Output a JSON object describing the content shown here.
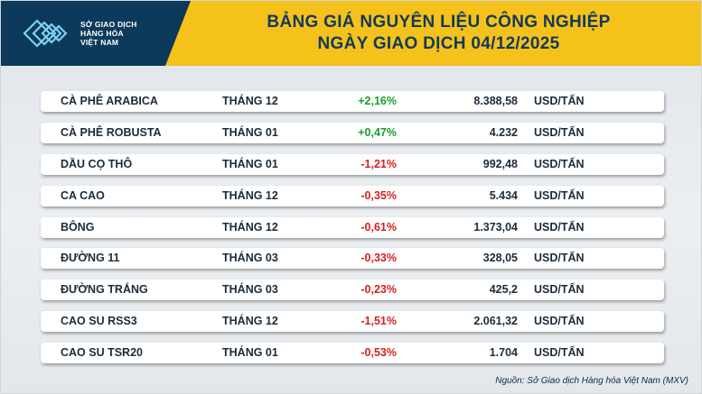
{
  "logo": {
    "line1": "SỞ GIAO DỊCH",
    "line2": "HÀNG HÓA",
    "line3": "VIỆT NAM"
  },
  "title": {
    "line1": "BẢNG GIÁ NGUYÊN LIỆU CÔNG NGHIỆP",
    "line2": "NGÀY GIAO DỊCH 04/12/2025"
  },
  "rows": [
    {
      "name": "CÀ PHÊ ARABICA",
      "month": "THÁNG 12",
      "change": "+2,16%",
      "dir": "pos",
      "price": "8.388,58",
      "unit": "USD/TẤN"
    },
    {
      "name": "CÀ PHÊ ROBUSTA",
      "month": "THÁNG 01",
      "change": "+0,47%",
      "dir": "pos",
      "price": "4.232",
      "unit": "USD/TẤN"
    },
    {
      "name": "DẦU CỌ THÔ",
      "month": "THÁNG 01",
      "change": "-1,21%",
      "dir": "neg",
      "price": "992,48",
      "unit": "USD/TẤN"
    },
    {
      "name": "CA CAO",
      "month": "THÁNG 12",
      "change": "-0,35%",
      "dir": "neg",
      "price": "5.434",
      "unit": "USD/TẤN"
    },
    {
      "name": "BÔNG",
      "month": "THÁNG 12",
      "change": "-0,61%",
      "dir": "neg",
      "price": "1.373,04",
      "unit": "USD/TẤN"
    },
    {
      "name": "ĐƯỜNG 11",
      "month": "THÁNG 03",
      "change": "-0,33%",
      "dir": "neg",
      "price": "328,05",
      "unit": "USD/TẤN"
    },
    {
      "name": "ĐƯỜNG TRẮNG",
      "month": "THÁNG 03",
      "change": "-0,23%",
      "dir": "neg",
      "price": "425,2",
      "unit": "USD/TẤN"
    },
    {
      "name": "CAO SU RSS3",
      "month": "THÁNG 12",
      "change": "-1,51%",
      "dir": "neg",
      "price": "2.061,32",
      "unit": "USD/TẤN"
    },
    {
      "name": "CAO SU TSR20",
      "month": "THÁNG 01",
      "change": "-0,53%",
      "dir": "neg",
      "price": "1.704",
      "unit": "USD/TẤN"
    }
  ],
  "source": "Nguồn: Sở Giao dịch Hàng hóa Việt Nam (MXV)",
  "colors": {
    "positive": "#1a9e2a",
    "negative": "#d61f1f",
    "banner": "#f5c21b",
    "navy": "#0b3a5b"
  }
}
